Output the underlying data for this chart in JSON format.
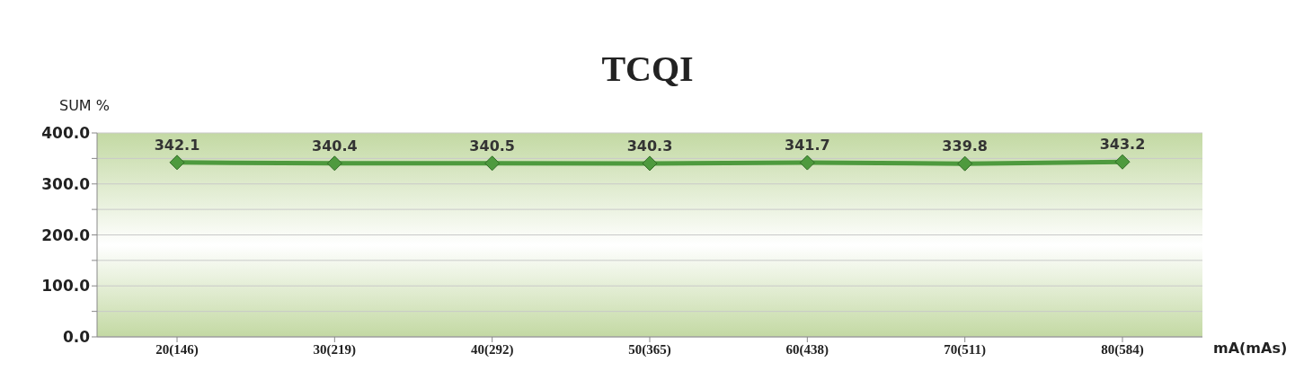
{
  "chart_data": {
    "type": "line",
    "title": "TCQI",
    "ylabel": "SUM %",
    "xlabel": "mA(mAs)",
    "categories": [
      "20(146)",
      "30(219)",
      "40(292)",
      "50(365)",
      "60(438)",
      "70(511)",
      "80(584)"
    ],
    "series": [
      {
        "color": "#4e9a3e",
        "values": [
          342.1,
          340.4,
          340.5,
          340.3,
          341.7,
          339.8,
          343.2
        ]
      }
    ],
    "ylim": [
      0,
      400
    ],
    "yticks": [
      {
        "value": 0,
        "label": "0.0"
      },
      {
        "value": 50,
        "label": null
      },
      {
        "value": 100,
        "label": "100.0"
      },
      {
        "value": 150,
        "label": null
      },
      {
        "value": 200,
        "label": "200.0"
      },
      {
        "value": 250,
        "label": null
      },
      {
        "value": 300,
        "label": "300.0"
      },
      {
        "value": 350,
        "label": null
      },
      {
        "value": 400,
        "label": "400.0"
      }
    ],
    "grid": "y",
    "marker": "diamond",
    "line_style": "solid",
    "data_labels": true
  }
}
